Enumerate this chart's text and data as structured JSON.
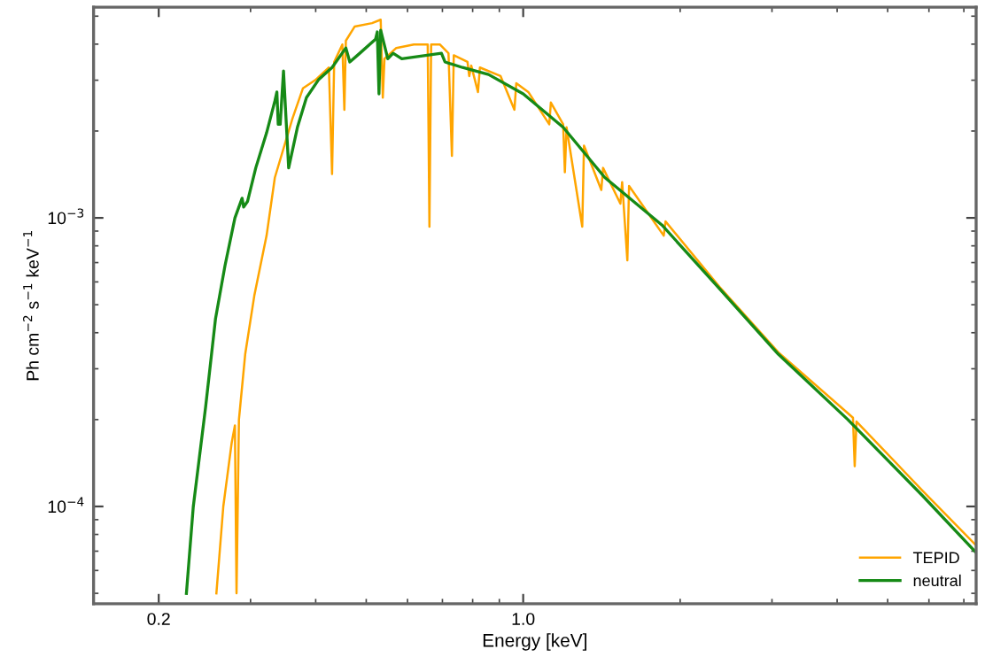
{
  "chart_data": {
    "type": "line",
    "xlabel": "Energy [keV]",
    "ylabel": "Ph cm$^{−2}$ s$^{−1}$ keV$^{−1}$",
    "log": "xy",
    "xlim": [
      0.15,
      7.39
    ],
    "ylim": [
      4.6e-05,
      0.00537
    ],
    "xticks": [
      0.2,
      {
        "value": 1,
        "label": "1.0"
      }
    ],
    "yticks": [
      {
        "value": 0.0001,
        "label": "10$^{−4}$"
      },
      {
        "value": 0.001,
        "label": "10$^{−3}$"
      }
    ],
    "grid": false,
    "legend": "bottom right",
    "marker": "none",
    "line_style": "solid",
    "series": [
      {
        "name": "TEPID",
        "color": "#ffa500",
        "x": [
          0.258,
          0.266,
          0.276,
          0.28,
          0.282,
          0.285,
          0.293,
          0.305,
          0.322,
          0.334,
          0.361,
          0.378,
          0.399,
          0.424,
          0.43,
          0.434,
          0.45,
          0.454,
          0.457,
          0.475,
          0.513,
          0.533,
          0.538,
          0.542,
          0.571,
          0.617,
          0.656,
          0.661,
          0.666,
          0.692,
          0.719,
          0.73,
          0.736,
          0.782,
          0.788,
          0.795,
          0.819,
          0.826,
          0.905,
          0.962,
          0.97,
          1.023,
          1.122,
          1.13,
          1.193,
          1.202,
          1.211,
          1.298,
          1.308,
          1.412,
          1.423,
          1.536,
          1.548,
          1.584,
          1.596,
          1.86,
          1.875,
          2.378,
          3.085,
          4.29,
          4.323,
          4.357,
          5.83,
          7.39
        ],
        "values": [
          5e-05,
          0.0001,
          0.000166,
          0.000191,
          5e-05,
          0.0002,
          0.000337,
          0.000537,
          0.000868,
          0.00138,
          0.00221,
          0.00281,
          0.003,
          0.00332,
          0.00142,
          0.00347,
          0.00399,
          0.00237,
          0.00411,
          0.0046,
          0.00473,
          0.00486,
          0.00261,
          0.00356,
          0.00388,
          0.00399,
          0.00399,
          0.000932,
          0.00399,
          0.00399,
          0.00372,
          0.00164,
          0.00366,
          0.00347,
          0.0031,
          0.00337,
          0.00273,
          0.00332,
          0.0031,
          0.00237,
          0.00293,
          0.00273,
          0.00211,
          0.00251,
          0.00211,
          0.00144,
          0.00206,
          0.000932,
          0.00178,
          0.00125,
          0.00149,
          0.00112,
          0.00133,
          0.000713,
          0.00129,
          0.000868,
          0.000972,
          0.000577,
          0.000342,
          0.000203,
          0.000138,
          0.000197,
          0.0001135,
          7.33e-05
        ]
      },
      {
        "name": "neutral",
        "color": "#168a16",
        "x": [
          0.226,
          0.233,
          0.246,
          0.257,
          0.268,
          0.28,
          0.289,
          0.291,
          0.296,
          0.307,
          0.322,
          0.334,
          0.337,
          0.339,
          0.342,
          0.347,
          0.355,
          0.369,
          0.384,
          0.405,
          0.43,
          0.457,
          0.465,
          0.486,
          0.521,
          0.525,
          0.529,
          0.533,
          0.55,
          0.563,
          0.585,
          0.697,
          0.708,
          0.765,
          0.858,
          1.0,
          1.193,
          1.434,
          1.846,
          2.378,
          3.085,
          4.194,
          5.83,
          7.39
        ],
        "values": [
          5e-05,
          0.0001,
          0.000221,
          0.000447,
          0.000683,
          0.001,
          0.00117,
          0.00109,
          0.00114,
          0.00149,
          0.00197,
          0.00254,
          0.00273,
          0.00211,
          0.00211,
          0.00323,
          0.00149,
          0.00206,
          0.00261,
          0.00301,
          0.00332,
          0.00388,
          0.00347,
          0.00372,
          0.00416,
          0.00441,
          0.00269,
          0.00447,
          0.00356,
          0.00372,
          0.00356,
          0.00372,
          0.00347,
          0.00332,
          0.00314,
          0.00269,
          0.00206,
          0.00138,
          0.000944,
          0.000569,
          0.000337,
          0.0002,
          0.000109,
          6.92e-05
        ]
      }
    ]
  }
}
